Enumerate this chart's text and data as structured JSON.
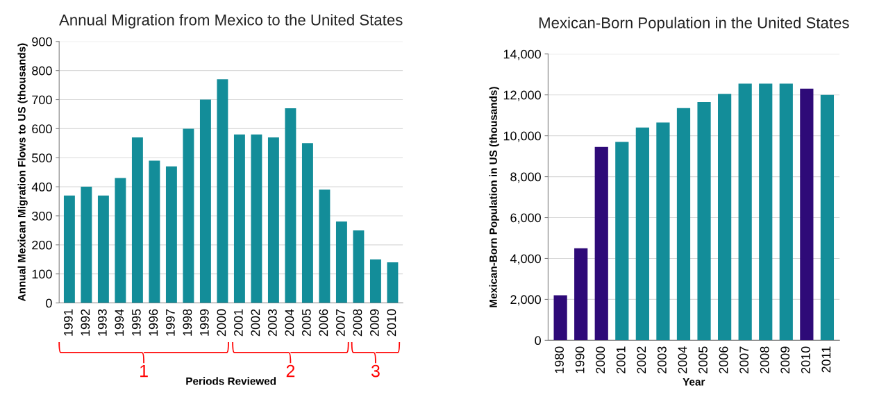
{
  "chart_data": [
    {
      "type": "bar",
      "title": "Annual Migration from Mexico to the United States",
      "xlabel": "Periods Reviewed",
      "ylabel": "Annual Mexican Migration Flows to US (thousands)",
      "categories": [
        "1991",
        "1992",
        "1993",
        "1994",
        "1995",
        "1996",
        "1997",
        "1998",
        "1999",
        "2000",
        "2001",
        "2002",
        "2003",
        "2004",
        "2005",
        "2006",
        "2007",
        "2008",
        "2009",
        "2010"
      ],
      "values": [
        370,
        400,
        370,
        430,
        570,
        490,
        470,
        600,
        700,
        770,
        580,
        580,
        570,
        670,
        550,
        390,
        280,
        250,
        150,
        140
      ],
      "color": "#138d99",
      "ylim": [
        0,
        900
      ],
      "yticks": [
        0,
        100,
        200,
        300,
        400,
        500,
        600,
        700,
        800,
        900
      ],
      "grid": "y",
      "annotations": [
        "1",
        "2",
        "3"
      ]
    },
    {
      "type": "bar",
      "title": "Mexican-Born Population in the United States",
      "xlabel": "Year",
      "ylabel": "Mexican-Born Population in US (thousands)",
      "categories": [
        "1980",
        "1990",
        "2000",
        "2001",
        "2002",
        "2003",
        "2004",
        "2005",
        "2006",
        "2007",
        "2008",
        "2009",
        "2010",
        "2011"
      ],
      "values": [
        2200,
        4500,
        9450,
        9700,
        10400,
        10650,
        11350,
        11650,
        12050,
        12550,
        12550,
        12550,
        12300,
        12000
      ],
      "colors": [
        "#2e0a78",
        "#2e0a78",
        "#2e0a78",
        "#138d99",
        "#138d99",
        "#138d99",
        "#138d99",
        "#138d99",
        "#138d99",
        "#138d99",
        "#138d99",
        "#138d99",
        "#2e0a78",
        "#138d99"
      ],
      "ylim": [
        0,
        14000
      ],
      "yticks": [
        {
          "value": 0,
          "label": "0"
        },
        {
          "value": 2000,
          "label": "2,000"
        },
        {
          "value": 4000,
          "label": "4,000"
        },
        {
          "value": 6000,
          "label": "6,000"
        },
        {
          "value": 8000,
          "label": "8,000"
        },
        {
          "value": 10000,
          "label": "10,000"
        },
        {
          "value": 12000,
          "label": "12,000"
        },
        {
          "value": 14000,
          "label": "14,000"
        }
      ],
      "grid": "y"
    }
  ]
}
